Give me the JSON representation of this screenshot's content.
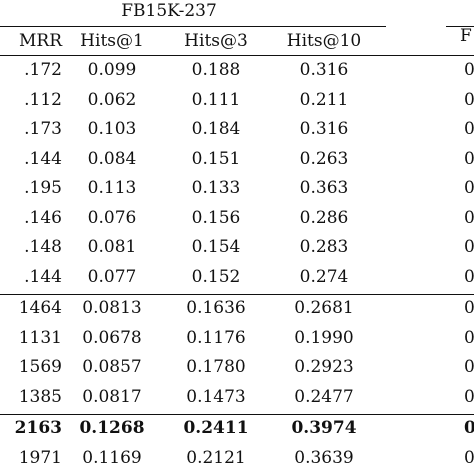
{
  "table": {
    "group_title": "FB15K-237",
    "right_group_fragment": "F",
    "headers": [
      "MRR",
      "Hits@1",
      "Hits@3",
      "Hits@10"
    ],
    "rows": [
      {
        "cells": [
          ".172",
          "0.099",
          "0.188",
          "0.316"
        ],
        "right": "0",
        "bold": false
      },
      {
        "cells": [
          ".112",
          "0.062",
          "0.111",
          "0.211"
        ],
        "right": "0",
        "bold": false
      },
      {
        "cells": [
          ".173",
          "0.103",
          "0.184",
          "0.316"
        ],
        "right": "0",
        "bold": false
      },
      {
        "cells": [
          ".144",
          "0.084",
          "0.151",
          "0.263"
        ],
        "right": "0",
        "bold": false
      },
      {
        "cells": [
          ".195",
          "0.113",
          "0.133",
          "0.363"
        ],
        "right": "0",
        "bold": false
      },
      {
        "cells": [
          ".146",
          "0.076",
          "0.156",
          "0.286"
        ],
        "right": "0",
        "bold": false
      },
      {
        "cells": [
          ".148",
          "0.081",
          "0.154",
          "0.283"
        ],
        "right": "0",
        "bold": false
      },
      {
        "cells": [
          ".144",
          "0.077",
          "0.152",
          "0.274"
        ],
        "right": "0",
        "bold": false
      },
      {
        "cells": [
          "1464",
          "0.0813",
          "0.1636",
          "0.2681"
        ],
        "right": "0",
        "bold": false
      },
      {
        "cells": [
          "1131",
          "0.0678",
          "0.1176",
          "0.1990"
        ],
        "right": "0",
        "bold": false
      },
      {
        "cells": [
          "1569",
          "0.0857",
          "0.1780",
          "0.2923"
        ],
        "right": "0",
        "bold": false
      },
      {
        "cells": [
          "1385",
          "0.0817",
          "0.1473",
          "0.2477"
        ],
        "right": "0",
        "bold": false
      },
      {
        "cells": [
          "2163",
          "0.1268",
          "0.2411",
          "0.3974"
        ],
        "right": "0",
        "bold": true
      },
      {
        "cells": [
          "1971",
          "0.1169",
          "0.2121",
          "0.3639"
        ],
        "right": "0",
        "bold": false
      }
    ]
  }
}
